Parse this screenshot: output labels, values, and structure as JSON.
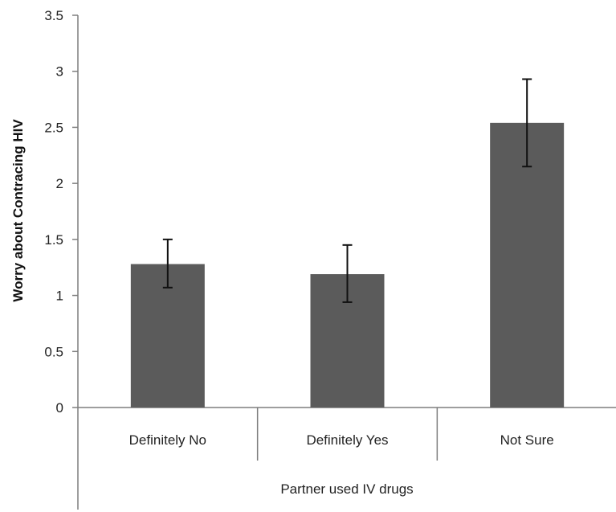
{
  "chart_data": {
    "type": "bar",
    "categories": [
      "Definitely No",
      "Definitely Yes",
      "Not Sure"
    ],
    "values": [
      1.28,
      1.19,
      2.54
    ],
    "error_low": [
      1.07,
      0.94,
      2.15
    ],
    "error_high": [
      1.5,
      1.45,
      2.93
    ],
    "xlabel": "Partner used IV drugs",
    "ylabel": "Worry about Contracing HIV",
    "ylim": [
      0,
      3.5
    ],
    "yticks": [
      "0",
      "0.5",
      "1",
      "1.5",
      "2",
      "2.5",
      "3",
      "3.5"
    ],
    "grid": false,
    "legend": "none",
    "bar_color": "#5b5b5b",
    "axis_color": "#7f7f7f"
  }
}
